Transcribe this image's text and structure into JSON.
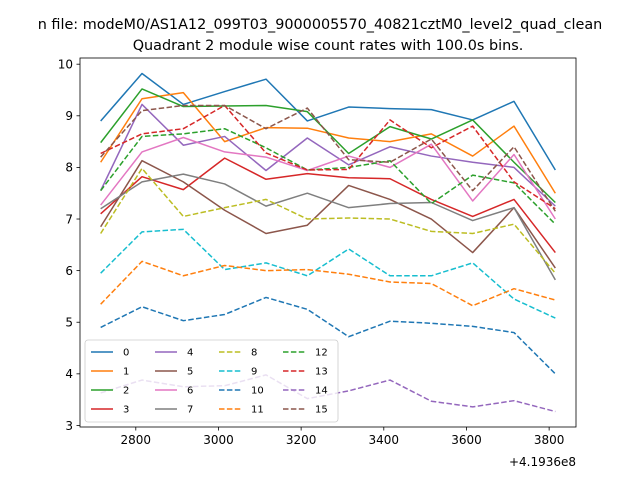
{
  "chart_data": {
    "type": "line",
    "suptitle": "n file: modeM0/AS1A12_099T03_9000005570_40821cztM0_level2_quad_clean",
    "title": "Quadrant 2 module wise count rates with 100.0s bins.",
    "xlabel": "",
    "ylabel": "",
    "offset_label": "+4.1936e8",
    "x_offset": 419360000,
    "xlim": [
      2665,
      3865
    ],
    "ylim": [
      2.97,
      10.12
    ],
    "xticks": [
      2800,
      3000,
      3200,
      3400,
      3600,
      3800
    ],
    "xtick_labels": [
      "2800",
      "3000",
      "3200",
      "3400",
      "3600",
      "3800"
    ],
    "yticks": [
      3,
      4,
      5,
      6,
      7,
      8,
      9,
      10
    ],
    "ytick_labels": [
      "3",
      "4",
      "5",
      "6",
      "7",
      "8",
      "9",
      "10"
    ],
    "grid": false,
    "legend": "lower-left",
    "x": [
      2715,
      2815,
      2915,
      3015,
      3115,
      3215,
      3315,
      3415,
      3515,
      3615,
      3715,
      3815
    ],
    "series": [
      {
        "name": "0",
        "color": "#1f77b4",
        "dash": "solid",
        "values": [
          8.9,
          9.82,
          9.22,
          9.47,
          9.71,
          8.9,
          9.17,
          9.14,
          9.12,
          8.92,
          9.28,
          7.95
        ]
      },
      {
        "name": "1",
        "color": "#ff7f0e",
        "dash": "solid",
        "values": [
          8.1,
          9.33,
          9.45,
          8.5,
          8.77,
          8.76,
          8.57,
          8.5,
          8.65,
          8.22,
          8.8,
          7.5
        ]
      },
      {
        "name": "2",
        "color": "#2ca02c",
        "dash": "solid",
        "values": [
          8.48,
          9.52,
          9.18,
          9.19,
          9.2,
          9.08,
          8.27,
          8.79,
          8.55,
          8.92,
          8.1,
          7.32
        ]
      },
      {
        "name": "3",
        "color": "#d62728",
        "dash": "solid",
        "values": [
          7.1,
          7.82,
          7.57,
          8.18,
          7.77,
          7.88,
          7.8,
          7.78,
          7.38,
          7.05,
          7.38,
          6.35
        ]
      },
      {
        "name": "4",
        "color": "#9467bd",
        "dash": "solid",
        "values": [
          7.55,
          9.22,
          8.43,
          8.6,
          7.94,
          8.57,
          8.05,
          8.4,
          8.22,
          8.1,
          8.0,
          7.25
        ]
      },
      {
        "name": "5",
        "color": "#8c564b",
        "dash": "solid",
        "values": [
          6.85,
          8.13,
          7.72,
          7.17,
          6.72,
          6.88,
          7.65,
          7.38,
          7.0,
          6.35,
          7.22,
          6.05
        ]
      },
      {
        "name": "6",
        "color": "#e377c2",
        "dash": "solid",
        "values": [
          7.27,
          8.3,
          8.58,
          8.3,
          8.2,
          7.94,
          8.22,
          8.0,
          8.45,
          7.35,
          8.25,
          7.0
        ]
      },
      {
        "name": "7",
        "color": "#7f7f7f",
        "dash": "solid",
        "values": [
          7.2,
          7.72,
          7.87,
          7.68,
          7.25,
          7.5,
          7.22,
          7.3,
          7.32,
          6.97,
          7.22,
          5.82
        ]
      },
      {
        "name": "8",
        "color": "#bcbd22",
        "dash": "dashed",
        "values": [
          6.72,
          7.98,
          7.05,
          7.22,
          7.38,
          7.0,
          7.02,
          7.0,
          6.76,
          6.72,
          6.9,
          5.95
        ]
      },
      {
        "name": "9",
        "color": "#17becf",
        "dash": "dashed",
        "values": [
          5.95,
          6.75,
          6.8,
          6.02,
          6.15,
          5.9,
          6.42,
          5.9,
          5.9,
          6.15,
          5.45,
          5.08
        ]
      },
      {
        "name": "10",
        "color": "#1f77b4",
        "dash": "dashed",
        "values": [
          4.9,
          5.3,
          5.03,
          5.15,
          5.48,
          5.25,
          4.72,
          5.02,
          4.98,
          4.92,
          4.8,
          4.0
        ]
      },
      {
        "name": "11",
        "color": "#ff7f0e",
        "dash": "dashed",
        "values": [
          5.35,
          6.18,
          5.9,
          6.1,
          6.0,
          6.02,
          5.93,
          5.78,
          5.75,
          5.32,
          5.65,
          5.43
        ]
      },
      {
        "name": "12",
        "color": "#2ca02c",
        "dash": "dashed",
        "values": [
          7.55,
          8.6,
          8.65,
          8.75,
          8.38,
          7.95,
          8.0,
          8.13,
          7.3,
          7.85,
          7.7,
          6.9
        ]
      },
      {
        "name": "13",
        "color": "#d62728",
        "dash": "dashed",
        "values": [
          8.27,
          8.65,
          8.75,
          9.2,
          8.28,
          7.95,
          7.96,
          8.92,
          8.38,
          8.8,
          7.72,
          7.2
        ]
      },
      {
        "name": "14",
        "color": "#9467bd",
        "dash": "dashed",
        "values": [
          3.63,
          3.88,
          3.75,
          3.77,
          3.98,
          3.52,
          3.67,
          3.88,
          3.47,
          3.36,
          3.48,
          3.27
        ]
      },
      {
        "name": "15",
        "color": "#8c564b",
        "dash": "dashed",
        "values": [
          8.2,
          9.1,
          9.2,
          9.2,
          8.75,
          9.15,
          8.15,
          8.1,
          8.55,
          7.55,
          8.4,
          7.15
        ]
      }
    ]
  }
}
